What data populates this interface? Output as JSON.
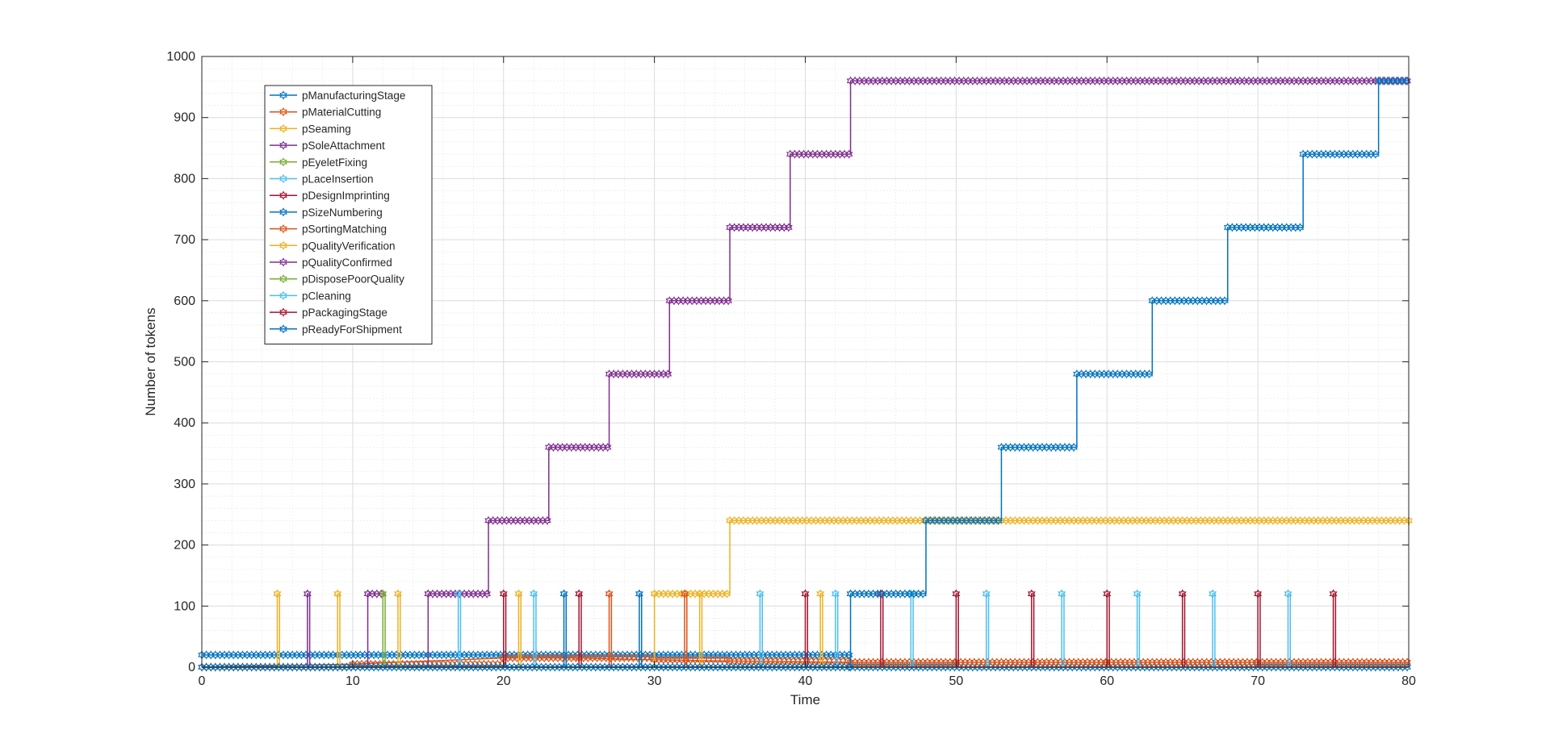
{
  "chart_data": {
    "type": "line",
    "xlabel": "Time",
    "ylabel": "Number of tokens",
    "xlim": [
      0,
      80
    ],
    "ylim": [
      0,
      1000
    ],
    "x_ticks": [
      0,
      10,
      20,
      30,
      40,
      50,
      60,
      70,
      80
    ],
    "y_ticks": [
      0,
      100,
      200,
      300,
      400,
      500,
      600,
      700,
      800,
      900,
      1000
    ],
    "x_tick_labels": [
      "0",
      "10",
      "20",
      "30",
      "40",
      "50",
      "60",
      "70",
      "80"
    ],
    "y_tick_labels": [
      "0",
      "100",
      "200",
      "300",
      "400",
      "500",
      "600",
      "700",
      "800",
      "900",
      "1000"
    ],
    "grid": true,
    "minor_grid": true,
    "legend_position": "top-left",
    "marker": "hexagram",
    "series": [
      {
        "name": "pManufacturingStage",
        "color": "#0072BD",
        "step": true,
        "points": [
          [
            0,
            20
          ],
          [
            43,
            0
          ],
          [
            80,
            0
          ]
        ]
      },
      {
        "name": "pMaterialCutting",
        "color": "#D95319",
        "step": false,
        "points": [
          [
            0,
            0
          ],
          [
            10,
            5
          ],
          [
            20,
            15
          ],
          [
            25,
            15
          ],
          [
            30,
            12
          ],
          [
            35,
            10
          ],
          [
            43,
            8
          ],
          [
            50,
            8
          ],
          [
            60,
            8
          ],
          [
            70,
            8
          ],
          [
            80,
            8
          ]
        ]
      },
      {
        "name": "pSeaming",
        "color": "#EDB120",
        "step": true,
        "points": [
          [
            0,
            0
          ],
          [
            5,
            120
          ],
          [
            5.15,
            0
          ],
          [
            9,
            120
          ],
          [
            9.15,
            0
          ],
          [
            13,
            120
          ],
          [
            13.15,
            0
          ],
          [
            21,
            120
          ],
          [
            21.15,
            0
          ],
          [
            30,
            120
          ],
          [
            35,
            240
          ],
          [
            80,
            232
          ]
        ]
      },
      {
        "name": "pSoleAttachment",
        "color": "#7E2F8E",
        "step": true,
        "points": [
          [
            0,
            0
          ],
          [
            7,
            120
          ],
          [
            7.15,
            0
          ],
          [
            11,
            120
          ],
          [
            12,
            0
          ],
          [
            15,
            120
          ],
          [
            19,
            240
          ],
          [
            23,
            360
          ],
          [
            27,
            480
          ],
          [
            31,
            600
          ],
          [
            35,
            720
          ],
          [
            39,
            840
          ],
          [
            43,
            960
          ],
          [
            80,
            960
          ]
        ]
      },
      {
        "name": "pEyeletFixing",
        "color": "#77AC30",
        "step": true,
        "points": [
          [
            0,
            0
          ],
          [
            12,
            120
          ],
          [
            12.15,
            0
          ],
          [
            80,
            0
          ]
        ]
      },
      {
        "name": "pLaceInsertion",
        "color": "#4DBEEE",
        "step": true,
        "points": [
          [
            0,
            0
          ],
          [
            17,
            120
          ],
          [
            17.15,
            0
          ],
          [
            22,
            120
          ],
          [
            22.15,
            0
          ],
          [
            37,
            120
          ],
          [
            37.15,
            0
          ],
          [
            42,
            120
          ],
          [
            42.15,
            0
          ],
          [
            47,
            120
          ],
          [
            47.15,
            0
          ],
          [
            52,
            120
          ],
          [
            52.15,
            0
          ],
          [
            57,
            120
          ],
          [
            57.15,
            0
          ],
          [
            62,
            120
          ],
          [
            62.15,
            0
          ],
          [
            67,
            120
          ],
          [
            67.15,
            0
          ],
          [
            72,
            120
          ],
          [
            72.15,
            0
          ],
          [
            80,
            0
          ]
        ]
      },
      {
        "name": "pDesignImprinting",
        "color": "#A2142F",
        "step": true,
        "points": [
          [
            0,
            0
          ],
          [
            20,
            120
          ],
          [
            20.15,
            0
          ],
          [
            25,
            120
          ],
          [
            25.15,
            0
          ],
          [
            40,
            120
          ],
          [
            40.15,
            0
          ],
          [
            45,
            120
          ],
          [
            45.15,
            0
          ],
          [
            50,
            120
          ],
          [
            50.15,
            0
          ],
          [
            55,
            120
          ],
          [
            55.15,
            0
          ],
          [
            60,
            120
          ],
          [
            60.15,
            0
          ],
          [
            65,
            120
          ],
          [
            65.15,
            0
          ],
          [
            70,
            120
          ],
          [
            70.15,
            0
          ],
          [
            75,
            120
          ],
          [
            75.15,
            0
          ],
          [
            80,
            0
          ]
        ]
      },
      {
        "name": "pSizeNumbering",
        "color": "#0072BD",
        "step": true,
        "points": [
          [
            0,
            0
          ],
          [
            24,
            120
          ],
          [
            24.15,
            0
          ],
          [
            29,
            120
          ],
          [
            29.15,
            0
          ],
          [
            80,
            0
          ]
        ]
      },
      {
        "name": "pSortingMatching",
        "color": "#D95319",
        "step": true,
        "points": [
          [
            0,
            0
          ],
          [
            27,
            120
          ],
          [
            27.15,
            0
          ],
          [
            32,
            120
          ],
          [
            32.15,
            0
          ],
          [
            80,
            0
          ]
        ]
      },
      {
        "name": "pQualityVerification",
        "color": "#EDB120",
        "step": true,
        "points": [
          [
            0,
            0
          ],
          [
            33,
            120
          ],
          [
            33.15,
            0
          ],
          [
            41,
            120
          ],
          [
            41.15,
            0
          ],
          [
            80,
            0
          ]
        ]
      },
      {
        "name": "pQualityConfirmed",
        "color": "#7E2F8E",
        "step": true,
        "points": [
          [
            0,
            0
          ],
          [
            80,
            0
          ]
        ]
      },
      {
        "name": "pDisposePoorQuality",
        "color": "#77AC30",
        "step": true,
        "points": [
          [
            0,
            0
          ],
          [
            80,
            0
          ]
        ]
      },
      {
        "name": "pCleaning",
        "color": "#4DBEEE",
        "step": true,
        "points": [
          [
            0,
            0
          ],
          [
            80,
            0
          ]
        ]
      },
      {
        "name": "pPackagingStage",
        "color": "#A2142F",
        "step": true,
        "points": [
          [
            0,
            0
          ],
          [
            80,
            0
          ]
        ]
      },
      {
        "name": "pReadyForShipment",
        "color": "#0072BD",
        "step": true,
        "points": [
          [
            0,
            0
          ],
          [
            43,
            120
          ],
          [
            48,
            240
          ],
          [
            53,
            360
          ],
          [
            58,
            480
          ],
          [
            63,
            600
          ],
          [
            68,
            720
          ],
          [
            73,
            840
          ],
          [
            78,
            960
          ],
          [
            80,
            960
          ]
        ]
      }
    ]
  }
}
